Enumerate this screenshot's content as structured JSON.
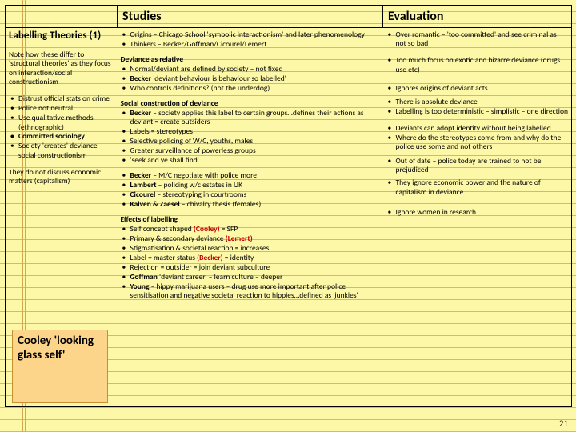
{
  "headers": {
    "studies": "Studies",
    "evaluation": "Evaluation"
  },
  "left": {
    "title": "Labelling Theories (1)",
    "note": "Note how these differ to 'structural theories' as they focus on interaction/social constructionism",
    "bullets": [
      "Distrust official stats on crime",
      "Police not neutral",
      "Use qualitative methods (ethnographic)",
      "Committed sociology",
      "Society 'creates' deviance – social constructionism"
    ],
    "boldIdx": [
      3
    ],
    "footnote": "They do not discuss economic matters (capitalism)",
    "callout": "Cooley 'looking glass self'"
  },
  "studies": {
    "top": [
      "Origins – Chicago School 'symbolic interactionism' and later phenomenology",
      "Thinkers – Becker/Goffman/Cicourel/Lemert"
    ],
    "sec1": {
      "title": "Deviance as relative",
      "items": [
        "Normal/deviant are defined by society – not fixed",
        "<span class='b'>Becker</span> 'deviant behaviour is behaviour so labelled'",
        "Who controls definitions? (not the underdog)"
      ]
    },
    "sec2": {
      "title": "Social construction of deviance",
      "items": [
        "<span class='b'>Becker</span> – society applies this label to certain groups…defines their actions as deviant = create outsiders",
        "Labels = stereotypes",
        "Selective policing of W/C, youths, males",
        "Greater surveillance of powerless groups",
        "'seek and ye shall find'"
      ]
    },
    "sec3": {
      "items": [
        "<span class='b'>Becker</span> – M/C negotiate with police more",
        "<span class='b'>Lambert</span> – policing w/c estates in UK",
        "<span class='b'>Cicourel</span> – stereotyping in courtrooms",
        "<span class='b'>Kalven &amp; Zaesel</span> – chivalry thesis (females)"
      ]
    },
    "sec4": {
      "title": "Effects of labelling",
      "items": [
        "Self concept shaped <span class='b r'>(Cooley)</span> = SFP",
        "Primary &amp; secondary deviance <span class='b r'>(Lemert)</span>",
        "Stigmatisation &amp; societal reaction = increases",
        "Label = master status <span class='b r'>(Becker)</span> = identity",
        "Rejection = outsider = join deviant subculture",
        "<span class='b'>Goffman</span> 'deviant career' – learn culture – deeper",
        "<span class='b'>Young</span> – hippy marijuana users – drug use more important after police sensitisation and negative societal reaction to hippies…defined as 'junkies'"
      ]
    }
  },
  "eval": {
    "first": [
      "Over romantic – 'too committed' and see criminal as not so bad"
    ],
    "rest": [
      "Too much focus on exotic and bizarre deviance (drugs use etc)",
      "Ignores origins of deviant acts",
      "There is absolute deviance",
      "Labelling is too deterministic – simplistic – one direction",
      "Deviants can adopt identity without being labelled",
      "Where do the stereotypes come from and why do the police use some and not others",
      "Out of date – police today are trained to not be prejudiced",
      "They ignore economic power and the nature of capitalism in deviance",
      "Ignore women in research"
    ],
    "spacing": [
      0,
      12,
      5,
      0,
      10,
      0,
      6,
      5,
      14
    ]
  },
  "pageNumber": "21"
}
